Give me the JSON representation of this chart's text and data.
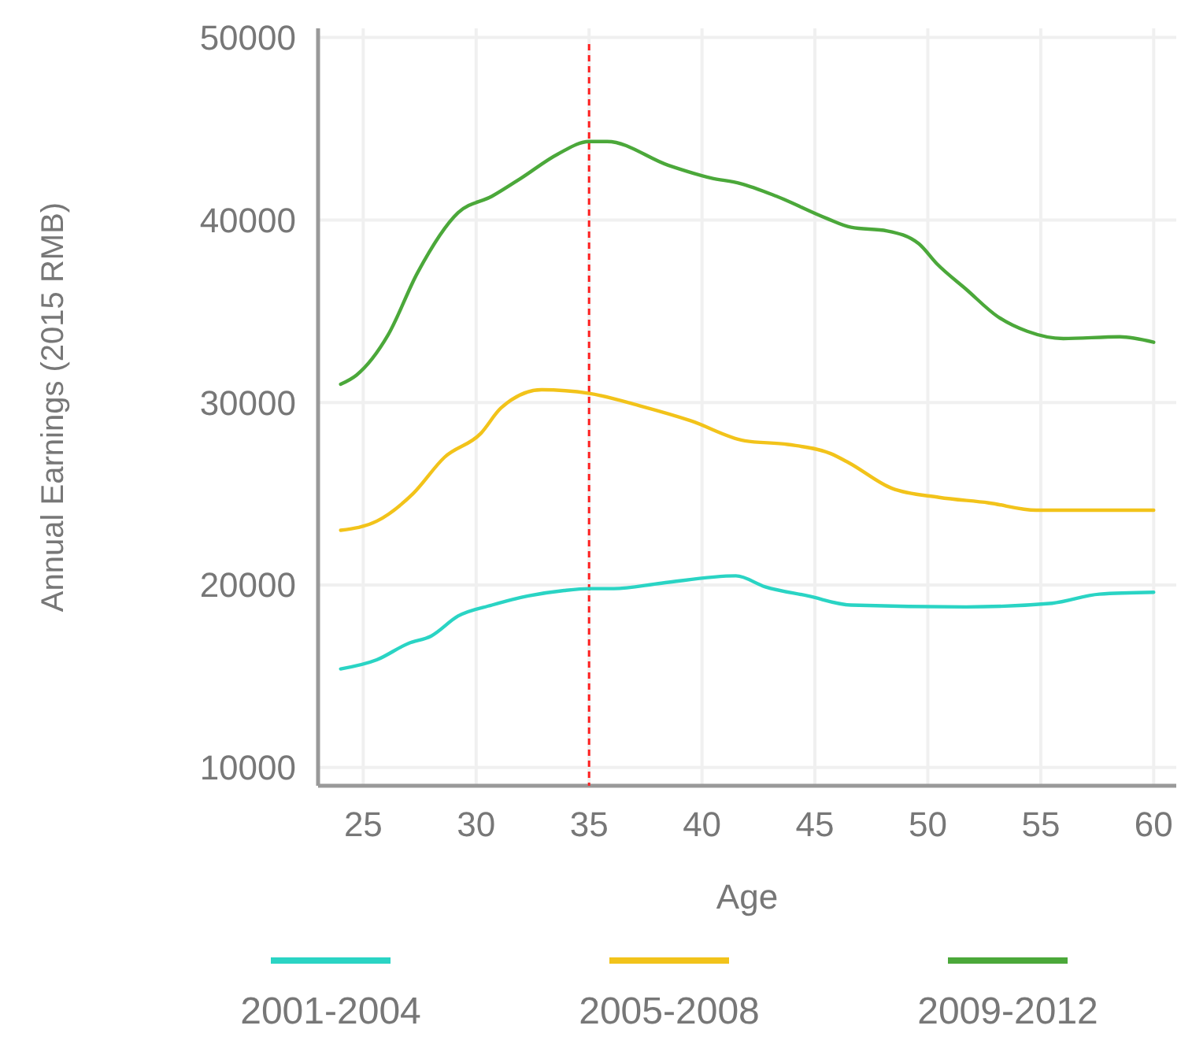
{
  "chart_data": {
    "type": "line",
    "xlabel": "Age",
    "ylabel": "Annual Earnings (2015 RMB)",
    "xlim": [
      23,
      61
    ],
    "xticks": [
      25,
      30,
      35,
      40,
      45,
      50,
      55,
      60
    ],
    "ylim": [
      9000,
      50500
    ],
    "yticks": [
      10000,
      20000,
      30000,
      40000,
      50000
    ],
    "grid": true,
    "legend": "bottom",
    "marker": "none",
    "line_style": "solid",
    "ref_lines": [
      {
        "axis": "x",
        "value": 35,
        "color": "#ff2020",
        "line_style": "dashed"
      }
    ],
    "series": [
      {
        "name": "2001-2004",
        "color": "#2ad4c4",
        "x": [
          24,
          25.6,
          27,
          28,
          29.2,
          30.7,
          32.3,
          33.9,
          35,
          36.1,
          38.2,
          41.5,
          42.8,
          44.7,
          46.6,
          51.7,
          55.5,
          57.6,
          60
        ],
        "values": [
          15400,
          15900,
          16800,
          17200,
          18300,
          18900,
          19400,
          19700,
          19800,
          19800,
          20100,
          20500,
          19900,
          19400,
          18900,
          18800,
          19000,
          19500,
          19600
        ]
      },
      {
        "name": "2005-2008",
        "color": "#f2c31a",
        "x": [
          24,
          25.6,
          27.2,
          28.6,
          30.2,
          31.1,
          32.9,
          35,
          37.3,
          39.5,
          41.9,
          43.8,
          45.7,
          46.5,
          48.4,
          50.5,
          52.7,
          54.8,
          57.3,
          60
        ],
        "values": [
          23000,
          23500,
          25000,
          27000,
          28300,
          29700,
          30700,
          30500,
          29800,
          29000,
          27900,
          27700,
          27200,
          26700,
          25300,
          24800,
          24500,
          24100,
          24100,
          24100
        ]
      },
      {
        "name": "2009-2012",
        "color": "#4ba83a",
        "x": [
          24,
          24.7,
          26.1,
          27.4,
          29.2,
          30.7,
          32,
          33.6,
          35,
          35.8,
          38.5,
          40.4,
          41.7,
          43.3,
          45.5,
          46.6,
          48.2,
          49.6,
          50.4,
          51.7,
          53.1,
          54.4,
          56,
          58.5,
          60
        ],
        "values": [
          31000,
          31500,
          33700,
          37100,
          40400,
          41300,
          42300,
          43600,
          44300,
          44300,
          43000,
          42300,
          42000,
          41300,
          40100,
          39600,
          39400,
          38700,
          37600,
          36200,
          34700,
          33900,
          33500,
          33600,
          33300
        ]
      }
    ]
  }
}
